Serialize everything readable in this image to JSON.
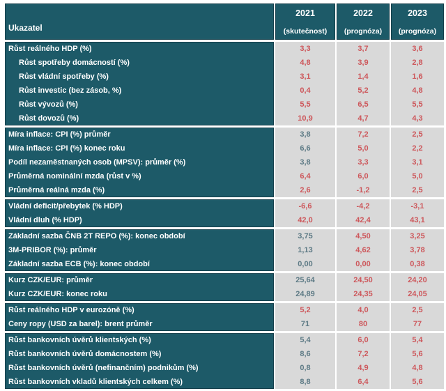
{
  "colors": {
    "header_bg": "#1d5a68",
    "header_border": "#143f4b",
    "value_bg": "#d9d9d9",
    "actual_text": "#5d7a85",
    "forecast_text": "#cd575b",
    "label_text": "#ffffff"
  },
  "table": {
    "header": {
      "label": "Ukazatel",
      "columns": [
        {
          "year": "2021",
          "sub": "(skutečnost)"
        },
        {
          "year": "2022",
          "sub": "(prognóza)"
        },
        {
          "year": "2023",
          "sub": "(prognóza)"
        }
      ]
    },
    "groups": [
      {
        "rows": [
          {
            "label": "Růst reálného HDP (%)",
            "indent": false,
            "values": [
              "3,3",
              "3,7",
              "3,6"
            ],
            "value_colors": [
              "forecast",
              "forecast",
              "forecast"
            ]
          },
          {
            "label": "Růst spotřeby domácností (%)",
            "indent": true,
            "values": [
              "4,8",
              "3,9",
              "2,8"
            ],
            "value_colors": [
              "forecast",
              "forecast",
              "forecast"
            ]
          },
          {
            "label": "Růst vládní spotřeby (%)",
            "indent": true,
            "values": [
              "3,1",
              "1,4",
              "1,6"
            ],
            "value_colors": [
              "forecast",
              "forecast",
              "forecast"
            ]
          },
          {
            "label": "Růst investic (bez zásob, %)",
            "indent": true,
            "values": [
              "0,4",
              "5,2",
              "4,8"
            ],
            "value_colors": [
              "forecast",
              "forecast",
              "forecast"
            ]
          },
          {
            "label": "Růst vývozů (%)",
            "indent": true,
            "values": [
              "5,5",
              "6,5",
              "5,5"
            ],
            "value_colors": [
              "forecast",
              "forecast",
              "forecast"
            ]
          },
          {
            "label": "Růst dovozů (%)",
            "indent": true,
            "values": [
              "10,9",
              "4,7",
              "4,3"
            ],
            "value_colors": [
              "forecast",
              "forecast",
              "forecast"
            ]
          }
        ]
      },
      {
        "rows": [
          {
            "label": "Míra inflace: CPI (%) průměr",
            "indent": false,
            "values": [
              "3,8",
              "7,2",
              "2,5"
            ],
            "value_colors": [
              "actual",
              "forecast",
              "forecast"
            ]
          },
          {
            "label": "Míra inflace: CPI (%) konec roku",
            "indent": false,
            "values": [
              "6,6",
              "5,0",
              "2,2"
            ],
            "value_colors": [
              "actual",
              "forecast",
              "forecast"
            ]
          },
          {
            "label": "Podíl nezaměstnaných osob (MPSV): průměr (%)",
            "indent": false,
            "values": [
              "3,8",
              "3,3",
              "3,1"
            ],
            "value_colors": [
              "actual",
              "forecast",
              "forecast"
            ]
          },
          {
            "label": "Průměrná nominální mzda (růst v %)",
            "indent": false,
            "values": [
              "6,4",
              "6,0",
              "5,0"
            ],
            "value_colors": [
              "forecast",
              "forecast",
              "forecast"
            ]
          },
          {
            "label": "Průměrná reálná mzda (%)",
            "indent": false,
            "values": [
              "2,6",
              "-1,2",
              "2,5"
            ],
            "value_colors": [
              "forecast",
              "forecast",
              "forecast"
            ]
          }
        ]
      },
      {
        "rows": [
          {
            "label": "Vládní deficit/přebytek (% HDP)",
            "indent": false,
            "values": [
              "-6,6",
              "-4,2",
              "-3,1"
            ],
            "value_colors": [
              "forecast",
              "forecast",
              "forecast"
            ]
          },
          {
            "label": "Vládní dluh (% HDP)",
            "indent": false,
            "values": [
              "42,0",
              "42,4",
              "43,1"
            ],
            "value_colors": [
              "forecast",
              "forecast",
              "forecast"
            ]
          }
        ]
      },
      {
        "rows": [
          {
            "label": "Základní sazba ČNB 2T REPO (%): konec období",
            "indent": false,
            "values": [
              "3,75",
              "4,50",
              "3,25"
            ],
            "value_colors": [
              "actual",
              "forecast",
              "forecast"
            ]
          },
          {
            "label": "3M-PRIBOR (%): průměr",
            "indent": false,
            "values": [
              "1,13",
              "4,62",
              "3,78"
            ],
            "value_colors": [
              "actual",
              "forecast",
              "forecast"
            ]
          },
          {
            "label": "Základní sazba ECB (%): konec období",
            "indent": false,
            "values": [
              "0,00",
              "0,00",
              "0,38"
            ],
            "value_colors": [
              "actual",
              "forecast",
              "forecast"
            ]
          }
        ]
      },
      {
        "rows": [
          {
            "label": "Kurz CZK/EUR: průměr",
            "indent": false,
            "values": [
              "25,64",
              "24,50",
              "24,20"
            ],
            "value_colors": [
              "actual",
              "forecast",
              "forecast"
            ]
          },
          {
            "label": "Kurz CZK/EUR: konec roku",
            "indent": false,
            "values": [
              "24,89",
              "24,35",
              "24,05"
            ],
            "value_colors": [
              "actual",
              "forecast",
              "forecast"
            ]
          }
        ]
      },
      {
        "rows": [
          {
            "label": "Růst reálného HDP v eurozóně (%)",
            "indent": false,
            "values": [
              "5,2",
              "4,0",
              "2,5"
            ],
            "value_colors": [
              "forecast",
              "forecast",
              "forecast"
            ]
          },
          {
            "label": "Ceny ropy (USD za barel): brent průměr",
            "indent": false,
            "values": [
              "71",
              "80",
              "77"
            ],
            "value_colors": [
              "actual",
              "forecast",
              "forecast"
            ]
          }
        ]
      },
      {
        "rows": [
          {
            "label": "Růst bankovních úvěrů klientských (%)",
            "indent": false,
            "values": [
              "5,4",
              "6,0",
              "5,4"
            ],
            "value_colors": [
              "actual",
              "forecast",
              "forecast"
            ]
          },
          {
            "label": "Růst bankovních úvěrů domácnostem (%)",
            "indent": false,
            "values": [
              "8,6",
              "7,2",
              "5,6"
            ],
            "value_colors": [
              "actual",
              "forecast",
              "forecast"
            ]
          },
          {
            "label": "Růst bankovních úvěrů (nefinančním) podnikům (%)",
            "indent": false,
            "values": [
              "0,8",
              "4,9",
              "4,8"
            ],
            "value_colors": [
              "actual",
              "forecast",
              "forecast"
            ]
          },
          {
            "label": "Růst bankovních vkladů klientských celkem (%)",
            "indent": false,
            "values": [
              "8,8",
              "6,4",
              "5,6"
            ],
            "value_colors": [
              "actual",
              "forecast",
              "forecast"
            ]
          }
        ]
      }
    ]
  }
}
